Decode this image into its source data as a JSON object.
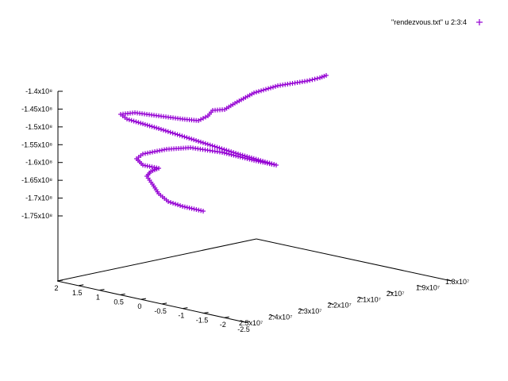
{
  "chart_data": {
    "type": "scatter",
    "dimensions": 3,
    "marker": "plus",
    "grid": false,
    "legend_position": "top-right",
    "series": [
      {
        "name": "\"rendezvous.txt\" u 2:3:4",
        "color": "#9400d3",
        "points": [
          [
            18000000.0,
            1.0,
            -140000000.0
          ],
          [
            18300000.0,
            0.9,
            -140500000.0
          ],
          [
            18600000.0,
            0.8,
            -141000000.0
          ],
          [
            18800000.0,
            0.7,
            -141500000.0
          ],
          [
            19000000.0,
            0.6,
            -142000000.0
          ],
          [
            19300000.0,
            0.5,
            -143000000.0
          ],
          [
            19600000.0,
            0.4,
            -144000000.0
          ],
          [
            19800000.0,
            0.3,
            -144500000.0
          ],
          [
            20000000.0,
            0.2,
            -145000000.0
          ],
          [
            20200000.0,
            0.1,
            -147000000.0
          ],
          [
            20400000.0,
            0.0,
            -149000000.0
          ],
          [
            20600000.0,
            -0.1,
            -150000000.0
          ],
          [
            20700000.0,
            -0.2,
            -151000000.0
          ],
          [
            20800000.0,
            -0.3,
            -152000000.0
          ],
          [
            21000000.0,
            -0.4,
            -154000000.0
          ],
          [
            21200000.0,
            -0.5,
            -156000000.0
          ],
          [
            21400000.0,
            -0.6,
            -158000000.0
          ],
          [
            21600000.0,
            -0.7,
            -160000000.0
          ],
          [
            21800000.0,
            -0.8,
            -162000000.0
          ],
          [
            22000000.0,
            -0.9,
            -163000000.0
          ],
          [
            22200000.0,
            -1.0,
            -162000000.0
          ],
          [
            22400000.0,
            -1.1,
            -160000000.0
          ],
          [
            22600000.0,
            -1.2,
            -158000000.0
          ],
          [
            22800000.0,
            -1.3,
            -155000000.0
          ],
          [
            23000000.0,
            -1.4,
            -152000000.0
          ],
          [
            23200000.0,
            -1.5,
            -149000000.0
          ],
          [
            23400000.0,
            -1.6,
            -146000000.0
          ],
          [
            23200000.0,
            -1.5,
            -147000000.0
          ],
          [
            23000000.0,
            -1.3,
            -148000000.0
          ],
          [
            22800000.0,
            -1.1,
            -150000000.0
          ],
          [
            22600000.0,
            -0.9,
            -152000000.0
          ],
          [
            22400000.0,
            -0.7,
            -155000000.0
          ],
          [
            22200000.0,
            -0.5,
            -158000000.0
          ],
          [
            22000000.0,
            -0.3,
            -160000000.0
          ],
          [
            21800000.0,
            -0.1,
            -161000000.0
          ],
          [
            21600000.0,
            0.1,
            -162000000.0
          ],
          [
            21400000.0,
            0.3,
            -160000000.0
          ],
          [
            21200000.0,
            0.5,
            -158000000.0
          ],
          [
            21000000.0,
            0.7,
            -157000000.0
          ],
          [
            20800000.0,
            0.9,
            -158000000.0
          ],
          [
            20600000.0,
            1.0,
            -160000000.0
          ],
          [
            20500000.0,
            1.0,
            -162000000.0
          ],
          [
            20400000.0,
            1.0,
            -164000000.0
          ],
          [
            20400000.0,
            1.05,
            -166000000.0
          ],
          [
            20500000.0,
            1.1,
            -168000000.0
          ],
          [
            20700000.0,
            1.1,
            -170000000.0
          ],
          [
            21000000.0,
            1.1,
            -172000000.0
          ],
          [
            21200000.0,
            1.1,
            -173000000.0
          ]
        ]
      }
    ],
    "xlim": [
      18000000.0,
      25000000.0
    ],
    "ylim": [
      -2.5,
      2
    ],
    "zlim": [
      -175000000.0,
      -140000000.0
    ],
    "x_ticks": [
      "1.8x10⁷",
      "1.9x10⁷",
      "2x10⁷",
      "2.1x10⁷",
      "2.2x10⁷",
      "2.3x10⁷",
      "2.4x10⁷",
      "2.5x10⁷"
    ],
    "y_ticks": [
      "2",
      "1.5",
      "1",
      "0.5",
      "0",
      "-0.5",
      "-1",
      "-1.5",
      "-2",
      "-2.5"
    ],
    "z_ticks": [
      "-1.4x10⁸",
      "-1.45x10⁸",
      "-1.5x10⁸",
      "-1.55x10⁸",
      "-1.6x10⁸",
      "-1.65x10⁸",
      "-1.7x10⁸",
      "-1.75x10⁸"
    ]
  }
}
